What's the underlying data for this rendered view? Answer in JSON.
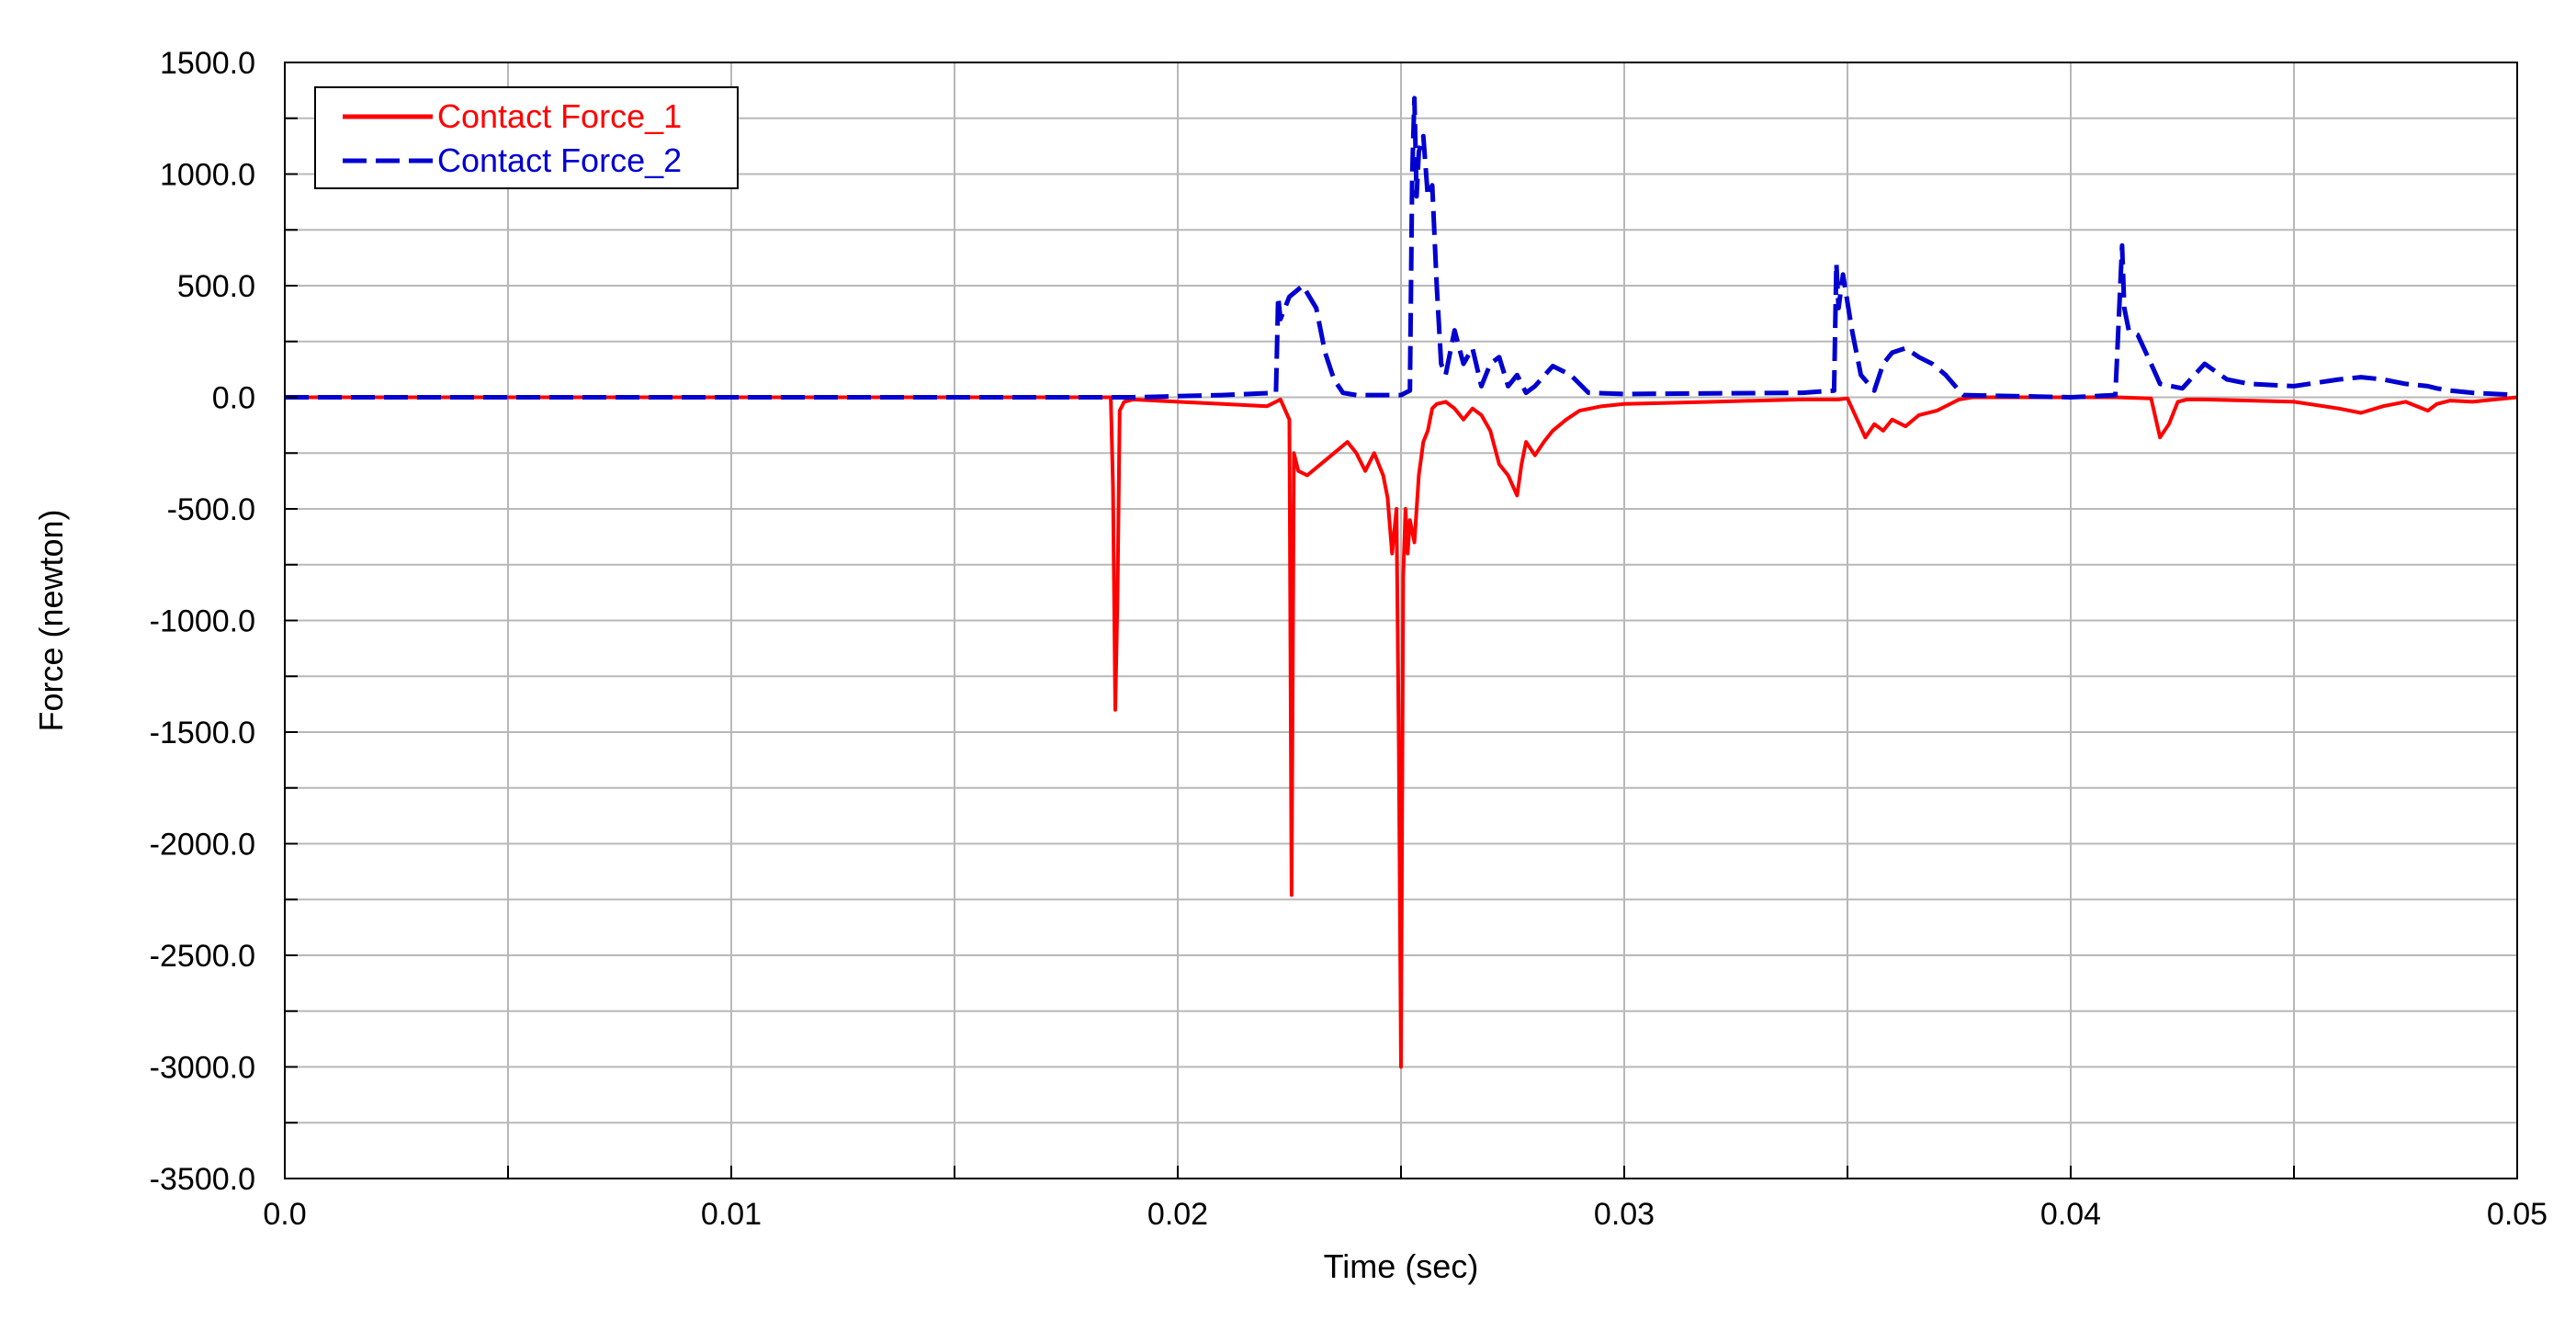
{
  "chart_data": {
    "type": "line",
    "title": "",
    "xlabel": "Time (sec)",
    "ylabel": "Force (newton)",
    "xlim": [
      0.0,
      0.05
    ],
    "ylim": [
      -3500,
      1500
    ],
    "x_ticks": [
      "0.0",
      "0.01",
      "0.02",
      "0.03",
      "0.04",
      "0.05"
    ],
    "x_tick_values": [
      0.0,
      0.01,
      0.02,
      0.03,
      0.04,
      0.05
    ],
    "y_ticks": [
      "1500.0",
      "1000.0",
      "500.0",
      "0.0",
      "-500.0",
      "-1000.0",
      "-1500.0",
      "-2000.0",
      "-2500.0",
      "-3000.0",
      "-3500.0"
    ],
    "y_tick_values": [
      1500,
      1000,
      500,
      0,
      -500,
      -1000,
      -1500,
      -2000,
      -2500,
      -3000,
      -3500
    ],
    "grid": true,
    "legend_position": "top-left",
    "series": [
      {
        "name": "Contact Force_1",
        "color": "#ff0000",
        "style": "solid",
        "x": [
          0.0,
          0.0185,
          0.01855,
          0.0186,
          0.01865,
          0.0187,
          0.0188,
          0.019,
          0.0195,
          0.02,
          0.021,
          0.022,
          0.0223,
          0.0225,
          0.02255,
          0.0226,
          0.0227,
          0.0229,
          0.0232,
          0.0235,
          0.0238,
          0.024,
          0.0242,
          0.0244,
          0.0246,
          0.0247,
          0.0248,
          0.0249,
          0.02495,
          0.025,
          0.02505,
          0.0251,
          0.02515,
          0.0252,
          0.0253,
          0.0254,
          0.0255,
          0.0256,
          0.0257,
          0.0258,
          0.026,
          0.0262,
          0.0264,
          0.0266,
          0.0268,
          0.027,
          0.0272,
          0.0274,
          0.0276,
          0.0277,
          0.0278,
          0.028,
          0.0282,
          0.0284,
          0.0287,
          0.029,
          0.0295,
          0.03,
          0.031,
          0.032,
          0.033,
          0.034,
          0.0348,
          0.035,
          0.0354,
          0.0356,
          0.0358,
          0.036,
          0.0363,
          0.0366,
          0.037,
          0.0375,
          0.0378,
          0.04,
          0.041,
          0.0418,
          0.042,
          0.0422,
          0.0424,
          0.0426,
          0.043,
          0.044,
          0.045,
          0.046,
          0.0465,
          0.047,
          0.0475,
          0.048,
          0.0482,
          0.0485,
          0.049,
          0.0495,
          0.05
        ],
        "y": [
          0,
          0,
          -400,
          -1400,
          -900,
          -60,
          -20,
          -10,
          -15,
          -20,
          -30,
          -40,
          -10,
          -100,
          -2230,
          -250,
          -330,
          -350,
          -300,
          -250,
          -200,
          -250,
          -330,
          -250,
          -350,
          -450,
          -700,
          -500,
          -1550,
          -3000,
          -800,
          -500,
          -700,
          -550,
          -650,
          -350,
          -200,
          -150,
          -50,
          -30,
          -20,
          -50,
          -100,
          -50,
          -80,
          -150,
          -300,
          -350,
          -440,
          -300,
          -200,
          -260,
          -200,
          -150,
          -100,
          -60,
          -40,
          -30,
          -25,
          -20,
          -15,
          -10,
          -10,
          -5,
          -180,
          -120,
          -150,
          -100,
          -130,
          -80,
          -60,
          -10,
          0,
          0,
          0,
          -5,
          -180,
          -120,
          -20,
          -10,
          -10,
          -15,
          -20,
          -50,
          -70,
          -40,
          -20,
          -60,
          -30,
          -15,
          -20,
          -10,
          0
        ]
      },
      {
        "name": "Contact Force_2",
        "color": "#0000d0",
        "style": "dashed",
        "x": [
          0.0,
          0.0185,
          0.019,
          0.02,
          0.021,
          0.0222,
          0.02225,
          0.0223,
          0.0225,
          0.0228,
          0.0231,
          0.0233,
          0.0235,
          0.0237,
          0.024,
          0.025,
          0.0252,
          0.02525,
          0.0253,
          0.02535,
          0.0254,
          0.0255,
          0.0256,
          0.0257,
          0.0258,
          0.0259,
          0.026,
          0.0262,
          0.0264,
          0.0266,
          0.0268,
          0.027,
          0.0272,
          0.0274,
          0.0276,
          0.0278,
          0.028,
          0.0284,
          0.0288,
          0.0292,
          0.03,
          0.034,
          0.0347,
          0.03475,
          0.0348,
          0.0349,
          0.0351,
          0.0353,
          0.0356,
          0.0358,
          0.036,
          0.0363,
          0.0366,
          0.0369,
          0.0372,
          0.0375,
          0.0376,
          0.04,
          0.041,
          0.04115,
          0.0412,
          0.0413,
          0.0415,
          0.0418,
          0.042,
          0.0425,
          0.043,
          0.0435,
          0.044,
          0.045,
          0.046,
          0.0465,
          0.047,
          0.0475,
          0.048,
          0.0482,
          0.0485,
          0.049,
          0.05
        ],
        "y": [
          0,
          0,
          0,
          5,
          10,
          20,
          450,
          350,
          450,
          500,
          400,
          200,
          80,
          20,
          10,
          10,
          30,
          1000,
          1340,
          900,
          1100,
          1170,
          900,
          950,
          500,
          150,
          100,
          300,
          150,
          220,
          50,
          150,
          180,
          50,
          100,
          20,
          50,
          140,
          100,
          20,
          15,
          20,
          30,
          600,
          400,
          550,
          300,
          100,
          30,
          150,
          200,
          220,
          180,
          150,
          100,
          30,
          10,
          0,
          10,
          680,
          400,
          300,
          280,
          150,
          60,
          40,
          150,
          80,
          60,
          50,
          80,
          90,
          80,
          60,
          50,
          40,
          30,
          20,
          10
        ]
      }
    ]
  }
}
